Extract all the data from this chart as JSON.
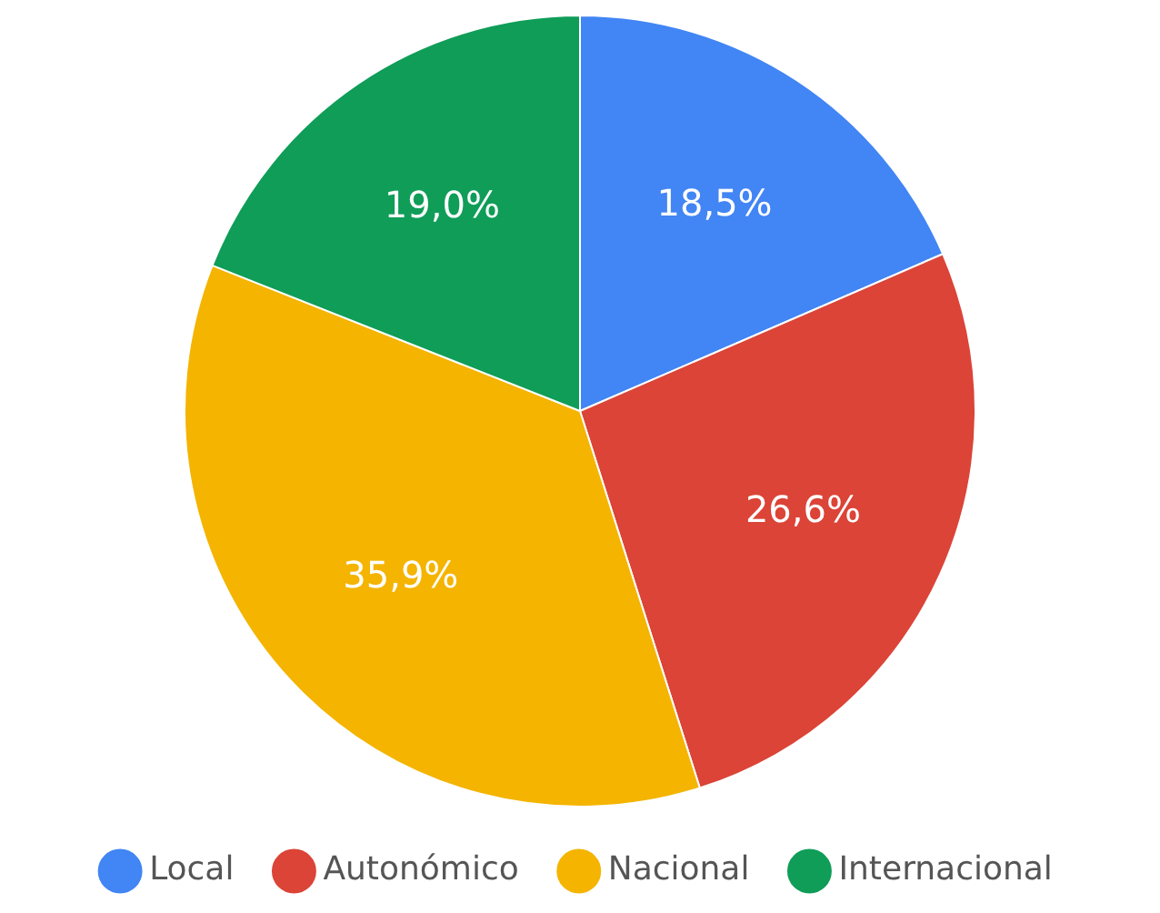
{
  "chart_data": {
    "type": "pie",
    "categories": [
      "Local",
      "Autonómico",
      "Nacional",
      "Internacional"
    ],
    "values": [
      18.5,
      26.6,
      35.9,
      19.0
    ],
    "colors": [
      "#4285f4",
      "#db4437",
      "#f4b400",
      "#0f9d58"
    ],
    "value_labels": [
      "18,5%",
      "26,6%",
      "35,9%",
      "19,0%"
    ],
    "legend": "bottom"
  }
}
